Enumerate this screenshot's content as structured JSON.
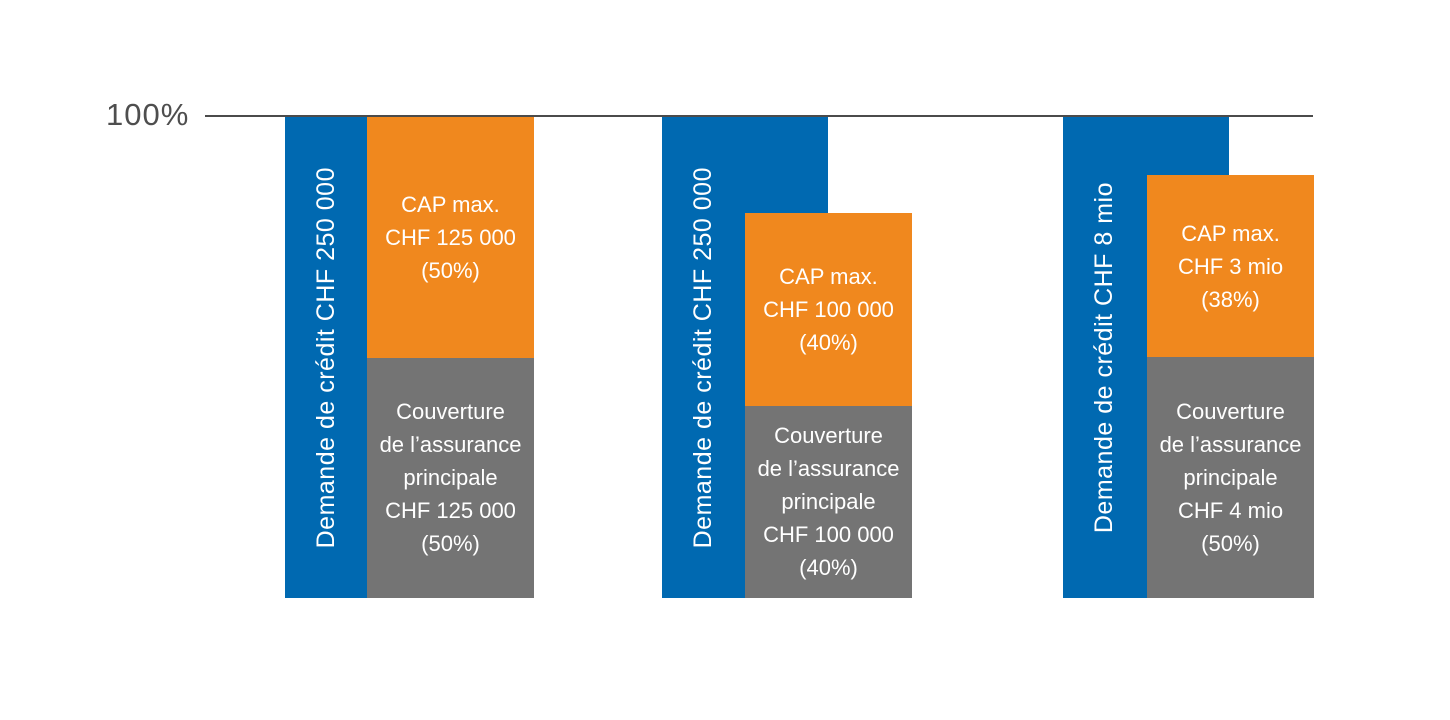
{
  "page": {
    "background": "#FFFFFF"
  },
  "chart_data": {
    "type": "bar",
    "stacked": true,
    "orientation": "vertical",
    "ylim": [
      0,
      100
    ],
    "unit": "%",
    "grid": "single top gridline only",
    "gridline_value": 100,
    "gridline_label": "100%",
    "legend": "none (labels printed inside bars)",
    "colors": {
      "demand_blue": "#0069B1",
      "cap_orange": "#F0881E",
      "coverage_grey": "#747474",
      "axis_line": "#4B4B4B",
      "axis_label_text": "#4E4E4E",
      "bar_text": "#FFFFFF"
    },
    "groups": [
      {
        "demand": {
          "label": "Demande de crédit CHF 250 000",
          "value_pct": 100
        },
        "cap": {
          "label": "CAP max.\nCHF 125 000\n(50%)",
          "amount": "CHF 125 000",
          "value_pct": 50
        },
        "coverage": {
          "label": "Couverture\nde l’assurance\nprincipale\nCHF 125 000\n(50%)",
          "amount": "CHF 125 000",
          "value_pct": 50
        }
      },
      {
        "demand": {
          "label": "Demande de crédit CHF 250 000",
          "value_pct": 100
        },
        "cap": {
          "label": "CAP max.\nCHF 100 000\n(40%)",
          "amount": "CHF 100 000",
          "value_pct": 40
        },
        "coverage": {
          "label": "Couverture\nde l’assurance\nprincipale\nCHF 100 000\n(40%)",
          "amount": "CHF 100 000",
          "value_pct": 40
        }
      },
      {
        "demand": {
          "label": "Demande de crédit CHF 8 mio",
          "value_pct": 100
        },
        "cap": {
          "label": "CAP max.\nCHF 3 mio\n(38%)",
          "amount": "CHF 3 mio",
          "value_pct": 38
        },
        "coverage": {
          "label": "Couverture\nde l’assurance\nprincipale\nCHF 4 mio\n(50%)",
          "amount": "CHF 4 mio",
          "value_pct": 50
        }
      }
    ]
  }
}
